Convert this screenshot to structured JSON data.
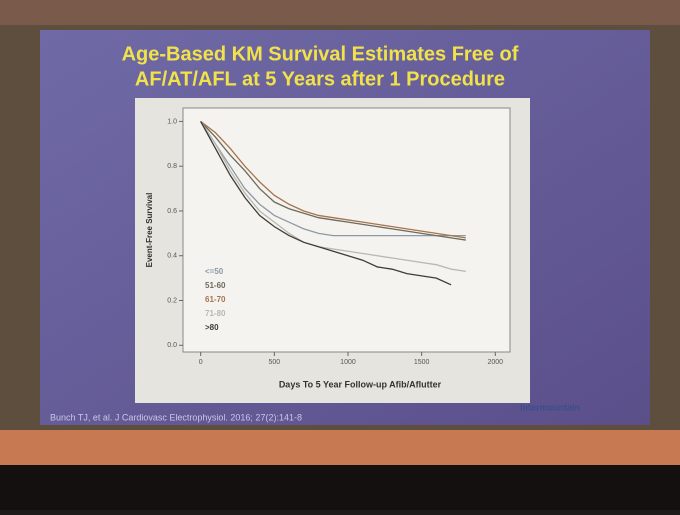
{
  "chart_data": {
    "type": "line",
    "title": [
      "Age-Based KM Survival Estimates Free of",
      "AF/AT/AFL at 5 Years after 1 Procedure"
    ],
    "x_label": "Days To 5 Year Follow-up Afib/Aflutter",
    "y_label": "Event-Free Survival",
    "x": [
      0,
      100,
      200,
      300,
      400,
      500,
      600,
      700,
      800,
      900,
      1000,
      1100,
      1200,
      1300,
      1400,
      1500,
      1600,
      1700,
      1800
    ],
    "series": [
      {
        "name": "<=50",
        "color": "#8d9aa6",
        "values": [
          1,
          0.9,
          0.8,
          0.7,
          0.63,
          0.58,
          0.55,
          0.52,
          0.5,
          0.49,
          0.49,
          0.49,
          0.49,
          0.49,
          0.49,
          0.49,
          0.49,
          0.49,
          0.49
        ]
      },
      {
        "name": "51-60",
        "color": "#6b6b5e",
        "values": [
          1,
          0.93,
          0.85,
          0.78,
          0.7,
          0.64,
          0.61,
          0.59,
          0.57,
          0.56,
          0.55,
          0.54,
          0.53,
          0.52,
          0.51,
          0.5,
          0.49,
          0.48,
          0.47
        ]
      },
      {
        "name": "61-70",
        "color": "#a8744c",
        "values": [
          1,
          0.95,
          0.88,
          0.8,
          0.73,
          0.67,
          0.63,
          0.6,
          0.58,
          0.57,
          0.56,
          0.55,
          0.54,
          0.53,
          0.52,
          0.51,
          0.5,
          0.49,
          0.48
        ]
      },
      {
        "name": "71-80",
        "color": "#b9b7ae",
        "values": [
          1,
          0.9,
          0.78,
          0.68,
          0.6,
          0.55,
          0.5,
          0.46,
          0.44,
          0.43,
          0.42,
          0.41,
          0.4,
          0.39,
          0.38,
          0.37,
          0.36,
          0.34,
          0.33
        ]
      },
      {
        "name": ">80",
        "color": "#3d3d38",
        "values": [
          1,
          0.88,
          0.76,
          0.66,
          0.58,
          0.53,
          0.49,
          0.46,
          0.44,
          0.42,
          0.4,
          0.38,
          0.35,
          0.34,
          0.32,
          0.31,
          0.3,
          0.27,
          null
        ]
      }
    ],
    "xlim": [
      -120,
      2100
    ],
    "ylim": [
      -0.03,
      1.06
    ],
    "xticks": [
      0,
      500,
      1000,
      1500,
      2000
    ],
    "yticks": [
      {
        "value": 0,
        "label": "0.0"
      },
      {
        "value": 0.2,
        "label": "0.2"
      },
      {
        "value": 0.4,
        "label": "0.4"
      },
      {
        "value": 0.6,
        "label": "0.6"
      },
      {
        "value": 0.8,
        "label": "0.8"
      },
      {
        "value": 1,
        "label": "1.0"
      }
    ],
    "citation": "Bunch TJ, et al. J Cardiovasc Electrophysiol. 2016; 27(2):141-8",
    "logo": "Intermountain"
  }
}
